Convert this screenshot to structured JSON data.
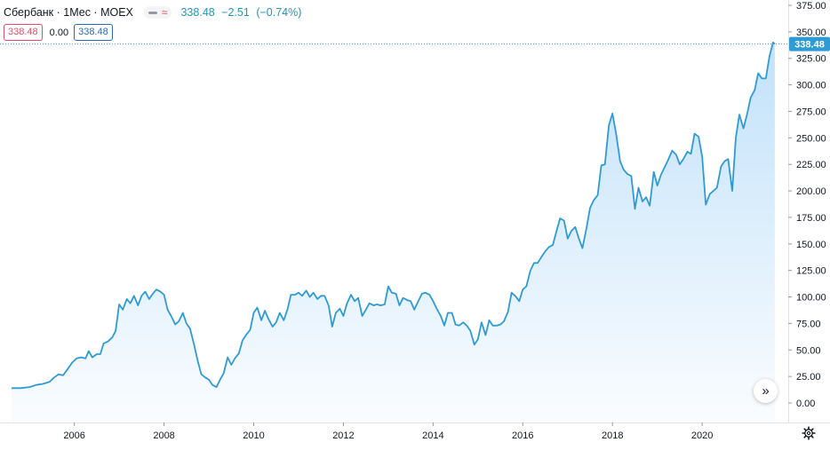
{
  "header": {
    "symbol": "Сбербанк · 1Мес · MOEX",
    "compare_glyph": "≈",
    "last_price": "338.48",
    "change": "−2.51",
    "change_pct": "(−0.74%)"
  },
  "ohlc": {
    "left_value": "338.48",
    "middle_value": "0.00",
    "right_value": "338.48"
  },
  "icons": {
    "scroll": "scroll-right-icon",
    "settings": "gear-icon"
  },
  "colors": {
    "line": "#2f9bd6",
    "area_top": "#bfe0fa",
    "accent": "#2196b6",
    "price_label": "#2f9bd6",
    "down": "#e0506e"
  },
  "chart_data": {
    "type": "area",
    "ylim": [
      -1,
      380
    ],
    "y_ticks": [
      "375.00",
      "350.00",
      "325.00",
      "300.00",
      "275.00",
      "250.00",
      "225.00",
      "200.00",
      "175.00",
      "150.00",
      "125.00",
      "100.00",
      "75.00",
      "50.00",
      "25.00",
      "0.00"
    ],
    "x_ticks": [
      "2006",
      "2008",
      "2010",
      "2012",
      "2014",
      "2016",
      "2018",
      "2020"
    ],
    "x_tick_values": [
      2006,
      2008,
      2010,
      2012,
      2014,
      2016,
      2018,
      2020
    ],
    "current_price_label": "338.48",
    "current_price": 338.48,
    "grid": false,
    "points": [
      [
        2004.6,
        14
      ],
      [
        2004.8,
        14
      ],
      [
        2005.0,
        15
      ],
      [
        2005.15,
        17
      ],
      [
        2005.3,
        18
      ],
      [
        2005.45,
        20
      ],
      [
        2005.55,
        24
      ],
      [
        2005.65,
        27
      ],
      [
        2005.75,
        26
      ],
      [
        2005.85,
        32
      ],
      [
        2005.95,
        38
      ],
      [
        2006.05,
        42
      ],
      [
        2006.15,
        43
      ],
      [
        2006.25,
        42
      ],
      [
        2006.32,
        49
      ],
      [
        2006.4,
        43
      ],
      [
        2006.5,
        46
      ],
      [
        2006.58,
        46
      ],
      [
        2006.65,
        56
      ],
      [
        2006.75,
        58
      ],
      [
        2006.85,
        62
      ],
      [
        2006.92,
        68
      ],
      [
        2007.0,
        93
      ],
      [
        2007.08,
        88
      ],
      [
        2007.17,
        98
      ],
      [
        2007.25,
        94
      ],
      [
        2007.33,
        101
      ],
      [
        2007.42,
        92
      ],
      [
        2007.5,
        101
      ],
      [
        2007.58,
        105
      ],
      [
        2007.67,
        98
      ],
      [
        2007.75,
        103
      ],
      [
        2007.83,
        107
      ],
      [
        2007.92,
        105
      ],
      [
        2008.0,
        102
      ],
      [
        2008.08,
        88
      ],
      [
        2008.17,
        81
      ],
      [
        2008.25,
        74
      ],
      [
        2008.33,
        77
      ],
      [
        2008.42,
        85
      ],
      [
        2008.5,
        75
      ],
      [
        2008.58,
        70
      ],
      [
        2008.67,
        55
      ],
      [
        2008.75,
        40
      ],
      [
        2008.83,
        27
      ],
      [
        2008.92,
        24
      ],
      [
        2009.0,
        22
      ],
      [
        2009.08,
        17
      ],
      [
        2009.17,
        15
      ],
      [
        2009.25,
        22
      ],
      [
        2009.33,
        28
      ],
      [
        2009.42,
        43
      ],
      [
        2009.5,
        36
      ],
      [
        2009.58,
        42
      ],
      [
        2009.67,
        47
      ],
      [
        2009.75,
        59
      ],
      [
        2009.83,
        64
      ],
      [
        2009.92,
        69
      ],
      [
        2010.0,
        85
      ],
      [
        2010.08,
        90
      ],
      [
        2010.17,
        78
      ],
      [
        2010.25,
        87
      ],
      [
        2010.33,
        79
      ],
      [
        2010.42,
        72
      ],
      [
        2010.5,
        76
      ],
      [
        2010.58,
        85
      ],
      [
        2010.67,
        78
      ],
      [
        2010.75,
        88
      ],
      [
        2010.83,
        102
      ],
      [
        2010.92,
        102
      ],
      [
        2011.0,
        104
      ],
      [
        2011.08,
        101
      ],
      [
        2011.17,
        106
      ],
      [
        2011.25,
        100
      ],
      [
        2011.33,
        104
      ],
      [
        2011.42,
        98
      ],
      [
        2011.5,
        101
      ],
      [
        2011.58,
        101
      ],
      [
        2011.67,
        92
      ],
      [
        2011.75,
        72
      ],
      [
        2011.83,
        85
      ],
      [
        2011.92,
        89
      ],
      [
        2012.0,
        82
      ],
      [
        2012.08,
        94
      ],
      [
        2012.17,
        102
      ],
      [
        2012.25,
        96
      ],
      [
        2012.33,
        99
      ],
      [
        2012.42,
        82
      ],
      [
        2012.5,
        88
      ],
      [
        2012.58,
        94
      ],
      [
        2012.67,
        92
      ],
      [
        2012.75,
        93
      ],
      [
        2012.83,
        92
      ],
      [
        2012.92,
        93
      ],
      [
        2013.0,
        110
      ],
      [
        2013.08,
        104
      ],
      [
        2013.17,
        103
      ],
      [
        2013.25,
        92
      ],
      [
        2013.33,
        99
      ],
      [
        2013.42,
        97
      ],
      [
        2013.5,
        96
      ],
      [
        2013.58,
        88
      ],
      [
        2013.67,
        96
      ],
      [
        2013.75,
        103
      ],
      [
        2013.83,
        104
      ],
      [
        2013.92,
        102
      ],
      [
        2014.0,
        96
      ],
      [
        2014.08,
        89
      ],
      [
        2014.17,
        82
      ],
      [
        2014.25,
        73
      ],
      [
        2014.33,
        85
      ],
      [
        2014.42,
        85
      ],
      [
        2014.5,
        74
      ],
      [
        2014.58,
        73
      ],
      [
        2014.67,
        76
      ],
      [
        2014.75,
        73
      ],
      [
        2014.83,
        68
      ],
      [
        2014.92,
        55
      ],
      [
        2015.0,
        60
      ],
      [
        2015.08,
        76
      ],
      [
        2015.17,
        64
      ],
      [
        2015.25,
        78
      ],
      [
        2015.33,
        73
      ],
      [
        2015.42,
        73
      ],
      [
        2015.5,
        74
      ],
      [
        2015.58,
        77
      ],
      [
        2015.67,
        86
      ],
      [
        2015.75,
        104
      ],
      [
        2015.83,
        101
      ],
      [
        2015.92,
        96
      ],
      [
        2016.0,
        107
      ],
      [
        2016.08,
        110
      ],
      [
        2016.17,
        125
      ],
      [
        2016.25,
        132
      ],
      [
        2016.33,
        132
      ],
      [
        2016.42,
        138
      ],
      [
        2016.5,
        143
      ],
      [
        2016.58,
        147
      ],
      [
        2016.67,
        149
      ],
      [
        2016.75,
        162
      ],
      [
        2016.83,
        174
      ],
      [
        2016.92,
        172
      ],
      [
        2017.0,
        155
      ],
      [
        2017.08,
        162
      ],
      [
        2017.17,
        166
      ],
      [
        2017.25,
        155
      ],
      [
        2017.33,
        146
      ],
      [
        2017.42,
        165
      ],
      [
        2017.5,
        184
      ],
      [
        2017.58,
        191
      ],
      [
        2017.67,
        196
      ],
      [
        2017.75,
        224
      ],
      [
        2017.83,
        225
      ],
      [
        2017.92,
        262
      ],
      [
        2018.0,
        273
      ],
      [
        2018.08,
        254
      ],
      [
        2018.17,
        228
      ],
      [
        2018.25,
        220
      ],
      [
        2018.33,
        216
      ],
      [
        2018.42,
        214
      ],
      [
        2018.5,
        183
      ],
      [
        2018.58,
        203
      ],
      [
        2018.67,
        190
      ],
      [
        2018.75,
        194
      ],
      [
        2018.83,
        186
      ],
      [
        2018.92,
        218
      ],
      [
        2019.0,
        205
      ],
      [
        2019.08,
        215
      ],
      [
        2019.17,
        223
      ],
      [
        2019.25,
        230
      ],
      [
        2019.33,
        238
      ],
      [
        2019.42,
        234
      ],
      [
        2019.5,
        225
      ],
      [
        2019.58,
        230
      ],
      [
        2019.67,
        237
      ],
      [
        2019.75,
        235
      ],
      [
        2019.83,
        254
      ],
      [
        2019.92,
        251
      ],
      [
        2020.0,
        232
      ],
      [
        2020.08,
        187
      ],
      [
        2020.17,
        197
      ],
      [
        2020.25,
        200
      ],
      [
        2020.33,
        203
      ],
      [
        2020.42,
        223
      ],
      [
        2020.5,
        228
      ],
      [
        2020.58,
        230
      ],
      [
        2020.67,
        200
      ],
      [
        2020.75,
        250
      ],
      [
        2020.83,
        272
      ],
      [
        2020.92,
        259
      ],
      [
        2021.0,
        272
      ],
      [
        2021.08,
        288
      ],
      [
        2021.17,
        295
      ],
      [
        2021.25,
        311
      ],
      [
        2021.33,
        306
      ],
      [
        2021.42,
        306
      ],
      [
        2021.5,
        327
      ],
      [
        2021.58,
        340
      ],
      [
        2021.62,
        338.48
      ]
    ]
  }
}
